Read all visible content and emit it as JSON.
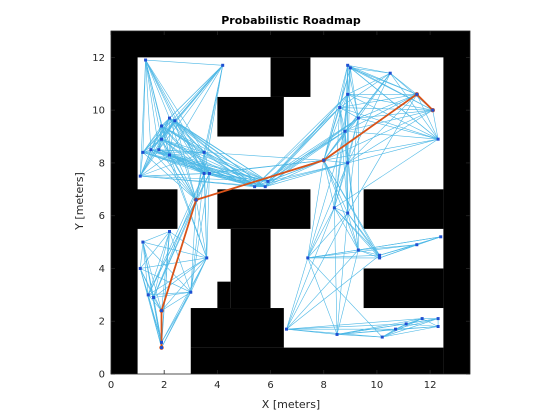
{
  "chart_data": {
    "type": "scatter",
    "title": "Probabilistic Roadmap",
    "xlabel": "X [meters]",
    "ylabel": "Y [meters]",
    "xlim": [
      0,
      13.5
    ],
    "ylim": [
      0,
      13
    ],
    "xticks": [
      0,
      2,
      4,
      6,
      8,
      10,
      12
    ],
    "yticks": [
      0,
      2,
      4,
      6,
      8,
      10,
      12
    ],
    "grid": false,
    "legend": "none",
    "colors": {
      "obstacle": "#000000",
      "free_space": "#ffffff",
      "roadmap_edge": "#4db8e6",
      "node": "#1f4fd1",
      "path": "#d95319",
      "axis": "#262626"
    },
    "map_obstacles": [
      {
        "x": [
          0,
          1
        ],
        "y": [
          0,
          13
        ]
      },
      {
        "x": [
          12.5,
          13.5
        ],
        "y": [
          0,
          13
        ]
      },
      {
        "x": [
          0,
          13.5
        ],
        "y": [
          12,
          13
        ]
      },
      {
        "x": [
          3,
          12.5
        ],
        "y": [
          0,
          1
        ]
      },
      {
        "x": [
          0,
          2.5
        ],
        "y": [
          5.5,
          7
        ]
      },
      {
        "x": [
          3,
          6.5
        ],
        "y": [
          1,
          2.5
        ]
      },
      {
        "x": [
          4,
          4.5
        ],
        "y": [
          2.5,
          3.5
        ]
      },
      {
        "x": [
          4,
          7.5
        ],
        "y": [
          5.5,
          7
        ]
      },
      {
        "x": [
          4.5,
          6
        ],
        "y": [
          2.5,
          5.5
        ]
      },
      {
        "x": [
          4,
          6.5
        ],
        "y": [
          9,
          10.5
        ]
      },
      {
        "x": [
          6,
          7.5
        ],
        "y": [
          10.5,
          12
        ]
      },
      {
        "x": [
          9.5,
          12.5
        ],
        "y": [
          5.5,
          7
        ]
      },
      {
        "x": [
          9.5,
          12.5
        ],
        "y": [
          2.5,
          4
        ]
      }
    ],
    "nodes": [
      [
        1.3,
        11.9
      ],
      [
        4.2,
        11.7
      ],
      [
        2.2,
        9.7
      ],
      [
        2.4,
        9.6
      ],
      [
        1.9,
        9.4
      ],
      [
        1.9,
        8.9
      ],
      [
        1.8,
        8.5
      ],
      [
        1.5,
        8.5
      ],
      [
        1.2,
        8.4
      ],
      [
        2.2,
        8.3
      ],
      [
        3.5,
        8.4
      ],
      [
        3.7,
        7.6
      ],
      [
        1.1,
        7.5
      ],
      [
        3.5,
        7.6
      ],
      [
        5.4,
        7.1
      ],
      [
        5.8,
        7.1
      ],
      [
        5.9,
        7.3
      ],
      [
        8.0,
        8.1
      ],
      [
        8.9,
        11.7
      ],
      [
        9.0,
        11.6
      ],
      [
        10.5,
        11.4
      ],
      [
        11.5,
        10.6
      ],
      [
        12.1,
        10.0
      ],
      [
        12.3,
        8.9
      ],
      [
        8.9,
        10.6
      ],
      [
        8.6,
        10.1
      ],
      [
        9.3,
        9.7
      ],
      [
        8.8,
        9.2
      ],
      [
        8.9,
        8.0
      ],
      [
        8.4,
        6.3
      ],
      [
        8.9,
        6.1
      ],
      [
        3.2,
        6.6
      ],
      [
        1.2,
        5.0
      ],
      [
        2.2,
        5.4
      ],
      [
        1.1,
        4.0
      ],
      [
        3.6,
        4.4
      ],
      [
        1.4,
        3.0
      ],
      [
        1.6,
        2.9
      ],
      [
        3.0,
        3.1
      ],
      [
        1.9,
        2.4
      ],
      [
        1.9,
        1.2
      ],
      [
        1.9,
        1.0
      ],
      [
        7.4,
        4.4
      ],
      [
        9.3,
        4.7
      ],
      [
        10.1,
        4.5
      ],
      [
        10.1,
        4.4
      ],
      [
        11.5,
        4.9
      ],
      [
        12.4,
        5.2
      ],
      [
        6.6,
        1.7
      ],
      [
        8.5,
        1.5
      ],
      [
        10.2,
        1.4
      ],
      [
        10.7,
        1.7
      ],
      [
        11.1,
        1.9
      ],
      [
        11.7,
        2.1
      ],
      [
        12.3,
        2.1
      ],
      [
        12.3,
        1.8
      ]
    ],
    "path": {
      "x": [
        1.9,
        1.9,
        3.2,
        8.0,
        11.5,
        12.1
      ],
      "y": [
        1.0,
        2.4,
        6.6,
        8.1,
        10.6,
        10.0
      ]
    }
  }
}
